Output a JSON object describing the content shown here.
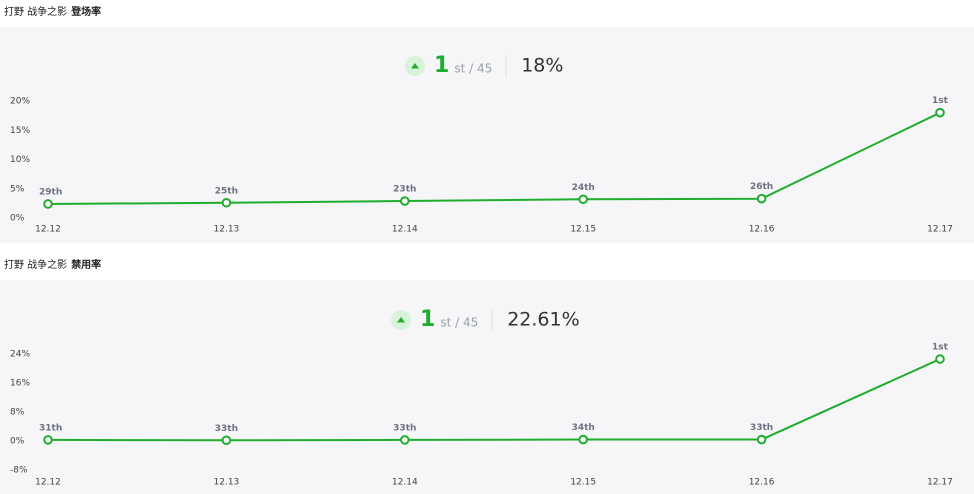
{
  "chart_data": [
    {
      "type": "line",
      "champion": "打野 战争之影",
      "metric": "登场率",
      "rank": 1,
      "rank_suffix": "st / 45",
      "headline": "18%",
      "categories": [
        "12.12",
        "12.13",
        "12.14",
        "12.15",
        "12.16",
        "12.17"
      ],
      "series": [
        {
          "color": "#1fad2e",
          "values": [
            2.4,
            2.6,
            2.9,
            3.2,
            3.3,
            18
          ],
          "rank_labels": [
            "29th",
            "25th",
            "23th",
            "24th",
            "26th",
            "1st"
          ]
        }
      ],
      "ylim": [
        0,
        20
      ],
      "yticks": [
        {
          "value": 0,
          "label": "0%"
        },
        {
          "value": 5,
          "label": "5%"
        },
        {
          "value": 10,
          "label": "10%"
        },
        {
          "value": 15,
          "label": "15%"
        },
        {
          "value": 20,
          "label": "20%"
        }
      ]
    },
    {
      "type": "line",
      "champion": "打野 战争之影",
      "metric": "禁用率",
      "rank": 1,
      "rank_suffix": "st / 45",
      "headline": "22.61%",
      "categories": [
        "12.12",
        "12.13",
        "12.14",
        "12.15",
        "12.16",
        "12.17"
      ],
      "series": [
        {
          "color": "#1fad2e",
          "values": [
            0.3,
            0.2,
            0.3,
            0.4,
            0.4,
            22.61
          ],
          "rank_labels": [
            "31th",
            "33th",
            "33th",
            "34th",
            "33th",
            "1st"
          ]
        }
      ],
      "ylim": [
        -8,
        24
      ],
      "yticks": [
        {
          "value": -8,
          "label": "-8%"
        },
        {
          "value": 0,
          "label": "0%"
        },
        {
          "value": 8,
          "label": "8%"
        },
        {
          "value": 16,
          "label": "16%"
        },
        {
          "value": 24,
          "label": "24%"
        }
      ]
    }
  ]
}
